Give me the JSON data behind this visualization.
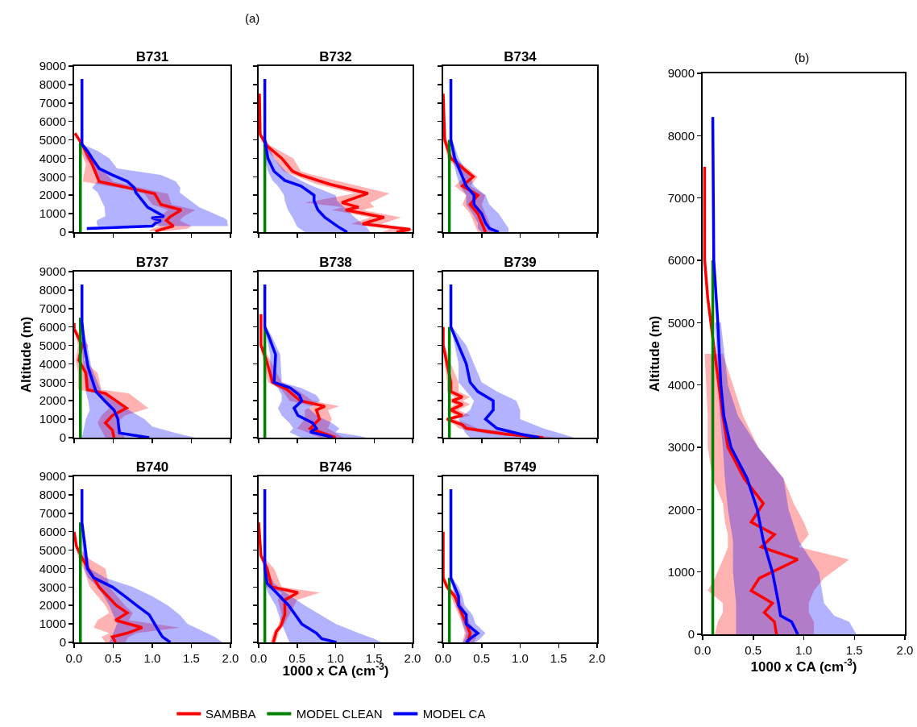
{
  "chart_data": [
    {
      "type": "line",
      "title": "B731",
      "orientation": "horizontal",
      "tick_labels": "y",
      "xlim": [
        0,
        2
      ],
      "ylim": [
        0,
        9000
      ],
      "xticks": [
        {
          "value": 0,
          "label": null
        },
        {
          "value": 0.5,
          "label": null
        },
        {
          "value": 1,
          "label": null
        },
        {
          "value": 1.5,
          "label": null
        },
        {
          "value": 2,
          "label": null
        }
      ],
      "yticks": [
        0,
        1000,
        2000,
        3000,
        4000,
        5000,
        6000,
        7000,
        8000,
        9000
      ],
      "grid": false,
      "legend": false,
      "series": [
        {
          "color": "#ff0000",
          "x": [
            5360,
            4770,
            3680,
            2740,
            2300,
            2080,
            1500,
            1200,
            840,
            630,
            330,
            190,
            40
          ],
          "values": [
            0.01,
            0.1,
            0.23,
            0.32,
            0.8,
            1.03,
            1.11,
            1.37,
            1.23,
            1.18,
            1.27,
            1.15,
            1.04
          ],
          "lower": [
            null,
            0.05,
            0.15,
            0.11,
            0.7,
            0.9,
            1.0,
            1.2,
            1.1,
            1.0,
            1.1,
            1.0,
            0.95
          ],
          "upper": [
            null,
            0.12,
            0.3,
            0.5,
            0.95,
            1.2,
            1.25,
            1.55,
            1.4,
            1.35,
            1.5,
            1.45,
            1.15
          ]
        },
        {
          "color": "#008000",
          "x": [
            0,
            4850
          ],
          "values": [
            0.08,
            0.08
          ]
        },
        {
          "color": "#0000ff",
          "x": [
            8300,
            4770,
            4400,
            4000,
            3450,
            3100,
            2750,
            2400,
            2150,
            1350,
            850,
            770,
            630,
            480,
            330,
            200,
            120
          ],
          "values": [
            0.1,
            0.1,
            0.17,
            0.23,
            0.32,
            0.49,
            0.68,
            0.77,
            0.79,
            0.94,
            1.15,
            0.99,
            1.11,
            1.04,
            1.0,
            0.18,
            0.18
          ],
          "lower": [
            null,
            0.1,
            0.12,
            0.15,
            0.25,
            0.3,
            0.3,
            0.23,
            0.3,
            0.39,
            0.4,
            0.35,
            0.29,
            0.29,
            0.3,
            null,
            null
          ],
          "upper": [
            null,
            0.1,
            0.3,
            0.45,
            0.55,
            1.11,
            1.3,
            1.36,
            1.35,
            1.6,
            1.87,
            1.92,
            1.96,
            1.96,
            1.97,
            null,
            null
          ]
        }
      ]
    },
    {
      "type": "line",
      "title": "B732",
      "orientation": "horizontal",
      "annotations": [
        "(a)"
      ],
      "tick_labels": false,
      "xlim": [
        0,
        2
      ],
      "ylim": [
        0,
        9000
      ],
      "xticks": [
        {
          "value": 0,
          "label": null
        },
        {
          "value": 0.5,
          "label": null
        },
        {
          "value": 1,
          "label": null
        },
        {
          "value": 1.5,
          "label": null
        },
        {
          "value": 2,
          "label": null
        }
      ],
      "yticks": [
        0,
        1000,
        2000,
        3000,
        4000,
        5000,
        6000,
        7000,
        8000,
        9000
      ],
      "grid": false,
      "legend": false,
      "series": [
        {
          "color": "#ff0000",
          "x": [
            7500,
            5300,
            4700,
            4000,
            3300,
            3100,
            2600,
            2100,
            1600,
            1350,
            1200,
            800,
            450,
            150,
            0
          ],
          "values": [
            0.01,
            0.02,
            0.1,
            0.3,
            0.44,
            0.55,
            0.92,
            1.42,
            1.08,
            1.3,
            1.13,
            1.63,
            1.35,
            1.97,
            1.79
          ],
          "lower": [
            null,
            0.02,
            0.07,
            0.2,
            0.32,
            0.45,
            0.75,
            1.25,
            0.6,
            1.1,
            0.95,
            1.45,
            1.2,
            1.7,
            1.6
          ],
          "upper": [
            null,
            0.03,
            0.15,
            0.45,
            0.55,
            0.7,
            1.2,
            1.7,
            1.45,
            1.5,
            1.35,
            1.85,
            1.6,
            2.0,
            1.95
          ]
        },
        {
          "color": "#008000",
          "x": [
            0,
            4900
          ],
          "values": [
            0.08,
            0.08
          ]
        },
        {
          "color": "#0000ff",
          "x": [
            8300,
            5000,
            4000,
            3300,
            2800,
            2500,
            2000,
            1700,
            1200,
            800,
            300,
            0
          ],
          "values": [
            0.08,
            0.08,
            0.12,
            0.2,
            0.34,
            0.55,
            0.72,
            0.72,
            0.77,
            0.86,
            1.03,
            1.15
          ],
          "lower": [
            null,
            0.08,
            0.08,
            0.12,
            0.18,
            0.25,
            0.33,
            0.34,
            0.38,
            0.44,
            0.5,
            0.6
          ],
          "upper": [
            null,
            0.1,
            0.2,
            0.35,
            0.55,
            0.7,
            1.0,
            1.02,
            1.15,
            1.25,
            1.4,
            1.45
          ]
        }
      ]
    },
    {
      "type": "line",
      "title": "B734",
      "orientation": "horizontal",
      "tick_labels": false,
      "xlim": [
        0,
        2
      ],
      "ylim": [
        0,
        9000
      ],
      "xticks": [
        {
          "value": 0,
          "label": null
        },
        {
          "value": 0.5,
          "label": null
        },
        {
          "value": 1,
          "label": null
        },
        {
          "value": 1.5,
          "label": null
        },
        {
          "value": 2,
          "label": null
        }
      ],
      "yticks": [
        0,
        1000,
        2000,
        3000,
        4000,
        5000,
        6000,
        7000,
        8000,
        9000
      ],
      "grid": false,
      "legend": false,
      "series": [
        {
          "color": "#ff0000",
          "x": [
            7500,
            5000,
            4000,
            3000,
            2500,
            2000,
            1500,
            1000,
            500,
            0
          ],
          "values": [
            0.0,
            0.02,
            0.1,
            0.39,
            0.25,
            0.45,
            0.35,
            0.45,
            0.5,
            0.55
          ],
          "lower": [
            null,
            0.0,
            0.06,
            0.28,
            0.15,
            0.3,
            0.25,
            0.35,
            0.4,
            0.45
          ],
          "upper": [
            null,
            0.05,
            0.15,
            0.45,
            0.35,
            0.55,
            0.5,
            0.55,
            0.6,
            0.65
          ]
        },
        {
          "color": "#008000",
          "x": [
            0,
            5000
          ],
          "values": [
            0.08,
            0.08
          ]
        },
        {
          "color": "#0000ff",
          "x": [
            8300,
            5000,
            4000,
            3000,
            2500,
            2000,
            1500,
            1000,
            500,
            200,
            0
          ],
          "values": [
            0.1,
            0.1,
            0.15,
            0.25,
            0.3,
            0.4,
            0.4,
            0.5,
            0.55,
            0.6,
            0.72
          ],
          "lower": [
            null,
            0.1,
            0.12,
            0.18,
            0.22,
            0.3,
            0.3,
            0.38,
            0.45,
            0.45,
            0.5
          ],
          "upper": [
            null,
            0.12,
            0.2,
            0.35,
            0.4,
            0.55,
            0.6,
            0.72,
            0.8,
            0.85,
            0.85
          ]
        }
      ]
    },
    {
      "type": "line",
      "title": "B737",
      "ylabel": "Altitude (m)",
      "orientation": "horizontal",
      "tick_labels": "y",
      "xlim": [
        0,
        2
      ],
      "ylim": [
        0,
        9000
      ],
      "xticks": [
        {
          "value": 0,
          "label": null
        },
        {
          "value": 0.5,
          "label": null
        },
        {
          "value": 1,
          "label": null
        },
        {
          "value": 1.5,
          "label": null
        },
        {
          "value": 2,
          "label": null
        }
      ],
      "yticks": [
        0,
        1000,
        2000,
        3000,
        4000,
        5000,
        6000,
        7000,
        8000,
        9000
      ],
      "grid": false,
      "legend": false,
      "series": [
        {
          "color": "#ff0000",
          "x": [
            6200,
            5900,
            5000,
            4200,
            3500,
            2600,
            2400,
            1600,
            1200,
            800,
            400,
            0
          ],
          "values": [
            0.0,
            0.0,
            0.1,
            0.06,
            0.15,
            0.17,
            0.4,
            0.67,
            0.49,
            0.4,
            0.49,
            0.51
          ],
          "lower": [
            null,
            0.0,
            0.05,
            0.02,
            0.05,
            0.05,
            0.3,
            0.45,
            0.35,
            0.3,
            0.35,
            0.4
          ],
          "upper": [
            null,
            0.02,
            0.18,
            0.12,
            0.3,
            0.35,
            0.7,
            0.95,
            0.65,
            0.55,
            0.6,
            0.65
          ]
        },
        {
          "color": "#008000",
          "x": [
            0,
            6500
          ],
          "values": [
            0.08,
            0.08
          ]
        },
        {
          "color": "#0000ff",
          "x": [
            8300,
            6300,
            5000,
            3800,
            2500,
            2000,
            1500,
            1000,
            600,
            250,
            0
          ],
          "values": [
            0.1,
            0.1,
            0.13,
            0.18,
            0.28,
            0.39,
            0.51,
            0.56,
            0.57,
            0.58,
            0.96
          ],
          "lower": [
            null,
            0.1,
            0.1,
            0.12,
            0.15,
            0.18,
            0.2,
            0.15,
            0.13,
            0.12,
            0.1
          ],
          "upper": [
            null,
            0.1,
            0.17,
            0.22,
            0.35,
            0.5,
            0.7,
            0.9,
            1.0,
            1.3,
            1.55
          ]
        }
      ]
    },
    {
      "type": "line",
      "title": "B738",
      "orientation": "horizontal",
      "tick_labels": false,
      "xlim": [
        0,
        2
      ],
      "ylim": [
        0,
        9000
      ],
      "xticks": [
        {
          "value": 0,
          "label": null
        },
        {
          "value": 0.5,
          "label": null
        },
        {
          "value": 1,
          "label": null
        },
        {
          "value": 1.5,
          "label": null
        },
        {
          "value": 2,
          "label": null
        }
      ],
      "yticks": [
        0,
        1000,
        2000,
        3000,
        4000,
        5000,
        6000,
        7000,
        8000,
        9000
      ],
      "grid": false,
      "legend": false,
      "series": [
        {
          "color": "#ff0000",
          "x": [
            6700,
            5000,
            4200,
            3000,
            2600,
            2000,
            1700,
            1500,
            1000,
            500,
            0
          ],
          "values": [
            0.03,
            0.03,
            0.1,
            0.18,
            0.37,
            0.54,
            0.86,
            0.75,
            0.79,
            0.67,
            1.0
          ],
          "lower": [
            null,
            0.02,
            0.06,
            0.12,
            0.3,
            0.4,
            0.7,
            0.6,
            0.6,
            0.5,
            0.8
          ],
          "upper": [
            null,
            0.05,
            0.15,
            0.3,
            0.5,
            0.7,
            1.05,
            0.9,
            0.95,
            0.9,
            1.1
          ]
        },
        {
          "color": "#008000",
          "x": [
            0,
            6000
          ],
          "values": [
            0.08,
            0.08
          ]
        },
        {
          "color": "#0000ff",
          "x": [
            8300,
            6000,
            5500,
            4500,
            3000,
            2700,
            2300,
            2000,
            1600,
            1200,
            800,
            500,
            300,
            100,
            0
          ],
          "values": [
            0.08,
            0.08,
            0.13,
            0.22,
            0.2,
            0.41,
            0.53,
            0.56,
            0.46,
            0.51,
            0.7,
            0.75,
            0.67,
            0.89,
            0.96
          ],
          "lower": [
            null,
            0.08,
            0.1,
            0.15,
            0.15,
            0.25,
            0.3,
            0.3,
            0.25,
            0.3,
            0.4,
            0.45,
            0.4,
            0.5,
            0.55
          ],
          "upper": [
            null,
            0.1,
            0.17,
            0.28,
            0.3,
            0.55,
            0.75,
            0.8,
            0.65,
            0.75,
            0.95,
            1.05,
            1.0,
            1.3,
            1.4
          ]
        }
      ]
    },
    {
      "type": "line",
      "title": "B739",
      "orientation": "horizontal",
      "tick_labels": false,
      "xlim": [
        0,
        2
      ],
      "ylim": [
        0,
        9000
      ],
      "xticks": [
        {
          "value": 0,
          "label": null
        },
        {
          "value": 0.5,
          "label": null
        },
        {
          "value": 1,
          "label": null
        },
        {
          "value": 1.5,
          "label": null
        },
        {
          "value": 2,
          "label": null
        }
      ],
      "yticks": [
        0,
        1000,
        2000,
        3000,
        4000,
        5000,
        6000,
        7000,
        8000,
        9000
      ],
      "grid": false,
      "legend": false,
      "series": [
        {
          "color": "#ff0000",
          "x": [
            6000,
            5000,
            4000,
            3000,
            2500,
            2200,
            2000,
            1800,
            1500,
            1200,
            1000,
            700,
            500,
            200,
            0
          ],
          "values": [
            0.0,
            0.0,
            0.05,
            0.1,
            0.1,
            0.25,
            0.12,
            0.25,
            0.1,
            0.25,
            0.05,
            0.25,
            0.3,
            0.8,
            1.3
          ],
          "lower": [
            null,
            0.0,
            0.02,
            0.05,
            0.05,
            0.15,
            0.05,
            0.15,
            0.05,
            0.15,
            0.02,
            0.15,
            0.2,
            0.6,
            1.1
          ],
          "upper": [
            null,
            0.02,
            0.1,
            0.2,
            0.2,
            0.35,
            0.25,
            0.35,
            0.2,
            0.35,
            0.15,
            0.35,
            0.45,
            1.1,
            1.45
          ]
        },
        {
          "color": "#008000",
          "x": [
            0,
            6000
          ],
          "values": [
            0.08,
            0.08
          ]
        },
        {
          "color": "#0000ff",
          "x": [
            8300,
            6000,
            5000,
            4500,
            4000,
            3000,
            2500,
            2000,
            1500,
            1000,
            500,
            200,
            0
          ],
          "values": [
            0.1,
            0.1,
            0.2,
            0.25,
            0.3,
            0.35,
            0.45,
            0.65,
            0.65,
            0.55,
            0.7,
            1.0,
            1.25
          ],
          "lower": [
            null,
            0.1,
            0.15,
            0.18,
            0.2,
            0.2,
            0.3,
            0.4,
            0.35,
            0.2,
            0.25,
            0.3,
            0.35
          ],
          "upper": [
            null,
            0.12,
            0.3,
            0.35,
            0.4,
            0.5,
            0.7,
            0.95,
            1.0,
            1.0,
            1.3,
            1.55,
            1.7
          ]
        }
      ]
    },
    {
      "type": "line",
      "title": "B740",
      "orientation": "horizontal",
      "xlim": [
        0,
        2
      ],
      "ylim": [
        0,
        9000
      ],
      "xticks": [
        {
          "value": 0,
          "label": "0.0"
        },
        {
          "value": 0.5,
          "label": "0.5"
        },
        {
          "value": 1,
          "label": "1.0"
        },
        {
          "value": 1.5,
          "label": "1.5"
        },
        {
          "value": 2,
          "label": "2.0"
        }
      ],
      "yticks": [
        0,
        1000,
        2000,
        3000,
        4000,
        5000,
        6000,
        7000,
        8000,
        9000
      ],
      "grid": false,
      "legend": false,
      "series": [
        {
          "color": "#ff0000",
          "x": [
            6000,
            5200,
            4500,
            4000,
            3000,
            2000,
            1600,
            1200,
            800,
            500,
            300,
            0
          ],
          "values": [
            0.0,
            0.03,
            0.11,
            0.18,
            0.32,
            0.54,
            0.68,
            0.53,
            0.87,
            0.68,
            0.49,
            0.53
          ],
          "lower": [
            null,
            0.02,
            0.06,
            0.12,
            0.2,
            0.4,
            0.45,
            0.3,
            0.25,
            0.45,
            0.35,
            0.4
          ],
          "upper": [
            null,
            0.05,
            0.2,
            0.4,
            0.45,
            0.65,
            0.75,
            0.7,
            1.35,
            0.8,
            0.7,
            0.65
          ]
        },
        {
          "color": "#008000",
          "x": [
            0,
            6500
          ],
          "values": [
            0.08,
            0.08
          ]
        },
        {
          "color": "#0000ff",
          "x": [
            8300,
            6500,
            5500,
            4000,
            3500,
            3000,
            2500,
            2000,
            1500,
            1000,
            500,
            300,
            0
          ],
          "values": [
            0.1,
            0.1,
            0.13,
            0.17,
            0.25,
            0.49,
            0.65,
            0.8,
            0.96,
            1.03,
            1.1,
            1.13,
            1.23
          ],
          "lower": [
            null,
            0.1,
            0.1,
            0.13,
            0.18,
            0.3,
            0.38,
            0.45,
            0.5,
            0.55,
            0.5,
            0.48,
            0.45
          ],
          "upper": [
            null,
            0.1,
            0.15,
            0.2,
            0.4,
            0.75,
            1.0,
            1.2,
            1.35,
            1.45,
            1.7,
            1.8,
            1.9
          ]
        }
      ]
    },
    {
      "type": "line",
      "title": "B746",
      "xlabel": "1000 x CA (cm$^{-3}$)",
      "orientation": "horizontal",
      "tick_labels": "x",
      "xlim": [
        0,
        2
      ],
      "ylim": [
        0,
        9000
      ],
      "xticks": [
        {
          "value": 0,
          "label": "0.0"
        },
        {
          "value": 0.5,
          "label": "0.5"
        },
        {
          "value": 1,
          "label": "1.0"
        },
        {
          "value": 1.5,
          "label": "1.5"
        },
        {
          "value": 2,
          "label": "2.0"
        }
      ],
      "yticks": [
        0,
        1000,
        2000,
        3000,
        4000,
        5000,
        6000,
        7000,
        8000,
        9000
      ],
      "grid": false,
      "legend": "bottom",
      "series": [
        {
          "name": "SAMBBA",
          "color": "#ff0000",
          "x": [
            6500,
            4700,
            4000,
            3000,
            2700,
            2300,
            1500,
            900,
            600,
            0
          ],
          "values": [
            0.0,
            0.03,
            0.11,
            0.17,
            0.51,
            0.34,
            0.34,
            0.29,
            0.23,
            0.19
          ],
          "lower": [
            null,
            0.02,
            0.07,
            0.1,
            0.3,
            0.25,
            0.3,
            0.25,
            0.2,
            0.15
          ],
          "upper": [
            null,
            0.05,
            0.2,
            0.3,
            0.8,
            0.5,
            0.4,
            0.32,
            0.27,
            0.22
          ]
        },
        {
          "name": "MODEL CLEAN",
          "color": "#008000",
          "x": [
            0,
            4000
          ],
          "values": [
            0.08,
            0.08
          ]
        },
        {
          "name": "MODEL CA",
          "color": "#0000ff",
          "x": [
            8300,
            4000,
            3200,
            2700,
            2000,
            1000,
            500,
            200,
            0
          ],
          "values": [
            0.08,
            0.08,
            0.11,
            0.23,
            0.39,
            0.56,
            0.75,
            0.82,
            1.01
          ],
          "lower": [
            null,
            0.08,
            0.08,
            0.12,
            0.22,
            0.3,
            0.35,
            0.38,
            0.4
          ],
          "upper": [
            null,
            0.1,
            0.2,
            0.35,
            0.6,
            1.0,
            1.3,
            1.5,
            1.6
          ]
        }
      ]
    },
    {
      "type": "line",
      "title": "B749",
      "orientation": "horizontal",
      "tick_labels": "x",
      "xlim": [
        0,
        2
      ],
      "ylim": [
        0,
        9000
      ],
      "xticks": [
        {
          "value": 0,
          "label": "0.0"
        },
        {
          "value": 0.5,
          "label": "0.5"
        },
        {
          "value": 1,
          "label": "1.0"
        },
        {
          "value": 1.5,
          "label": "1.5"
        },
        {
          "value": 2,
          "label": "2.0"
        }
      ],
      "yticks": [
        0,
        1000,
        2000,
        3000,
        4000,
        5000,
        6000,
        7000,
        8000,
        9000
      ],
      "grid": false,
      "legend": false,
      "series": [
        {
          "color": "#ff0000",
          "x": [
            6000,
            3500,
            3000,
            2500,
            2000,
            1500,
            1000,
            500,
            0
          ],
          "values": [
            0.0,
            0.0,
            0.05,
            0.15,
            0.2,
            0.25,
            0.3,
            0.35,
            0.32
          ],
          "lower": [
            null,
            0.0,
            0.03,
            0.1,
            0.15,
            0.2,
            0.25,
            0.28,
            0.25
          ],
          "upper": [
            null,
            0.02,
            0.08,
            0.2,
            0.25,
            0.3,
            0.35,
            0.45,
            0.4
          ]
        },
        {
          "color": "#008000",
          "x": [
            0,
            3500
          ],
          "values": [
            0.08,
            0.08
          ]
        },
        {
          "color": "#0000ff",
          "x": [
            8300,
            3500,
            3000,
            2500,
            2000,
            1500,
            1000,
            500,
            200,
            0
          ],
          "values": [
            0.1,
            0.1,
            0.15,
            0.2,
            0.2,
            0.3,
            0.3,
            0.45,
            0.35,
            0.3
          ],
          "lower": [
            null,
            0.1,
            0.12,
            0.15,
            0.17,
            0.22,
            0.25,
            0.3,
            0.28,
            0.25
          ],
          "upper": [
            null,
            0.12,
            0.2,
            0.25,
            0.28,
            0.38,
            0.42,
            0.55,
            0.48,
            0.42
          ]
        }
      ]
    },
    {
      "type": "line",
      "annotations": [
        "(b)"
      ],
      "xlabel": "1000 x CA (cm$^{-3}$)",
      "ylabel": "Altitude (m)",
      "orientation": "horizontal",
      "xlim": [
        0,
        2
      ],
      "ylim": [
        0,
        9000
      ],
      "xticks": [
        {
          "value": 0,
          "label": "0.0"
        },
        {
          "value": 0.5,
          "label": "0.5"
        },
        {
          "value": 1,
          "label": "1.0"
        },
        {
          "value": 1.5,
          "label": "1.5"
        },
        {
          "value": 2,
          "label": "2.0"
        }
      ],
      "yticks": [
        0,
        1000,
        2000,
        3000,
        4000,
        5000,
        6000,
        7000,
        8000,
        9000
      ],
      "grid": false,
      "legend": false,
      "series": [
        {
          "color": "#ff0000",
          "x": [
            7500,
            6000,
            5400,
            4500,
            3500,
            3000,
            2500,
            2100,
            1800,
            1600,
            1400,
            1200,
            900,
            700,
            500,
            350,
            200,
            0
          ],
          "values": [
            0.02,
            0.02,
            0.05,
            0.12,
            0.2,
            0.25,
            0.41,
            0.6,
            0.48,
            0.71,
            0.58,
            0.94,
            0.56,
            0.48,
            0.69,
            0.61,
            0.71,
            0.73
          ],
          "lower": [
            null,
            null,
            null,
            0.02,
            0.05,
            0.05,
            0.1,
            0.2,
            0.22,
            0.25,
            0.25,
            0.2,
            0.12,
            0.05,
            0.2,
            0.2,
            0.15,
            0.12
          ],
          "upper": [
            null,
            null,
            null,
            0.2,
            0.4,
            0.55,
            0.8,
            0.9,
            1.0,
            1.05,
            0.95,
            1.45,
            1.2,
            1.1,
            1.05,
            1.05,
            1.1,
            1.1
          ]
        },
        {
          "color": "#008000",
          "x": [
            0,
            6000
          ],
          "values": [
            0.1,
            0.1
          ]
        },
        {
          "color": "#0000ff",
          "x": [
            8300,
            6000,
            5000,
            4000,
            3500,
            3000,
            2500,
            2000,
            1500,
            1000,
            500,
            300,
            200,
            0
          ],
          "values": [
            0.1,
            0.11,
            0.15,
            0.18,
            0.21,
            0.28,
            0.44,
            0.54,
            0.6,
            0.69,
            0.75,
            0.77,
            0.88,
            0.94
          ],
          "lower": [
            null,
            null,
            0.12,
            0.15,
            0.17,
            0.2,
            0.22,
            0.25,
            0.3,
            0.3,
            0.33,
            0.33,
            0.33,
            0.33
          ],
          "upper": [
            null,
            null,
            0.18,
            0.25,
            0.35,
            0.55,
            0.8,
            0.85,
            0.95,
            1.15,
            1.2,
            1.3,
            1.45,
            1.52
          ]
        }
      ]
    }
  ]
}
